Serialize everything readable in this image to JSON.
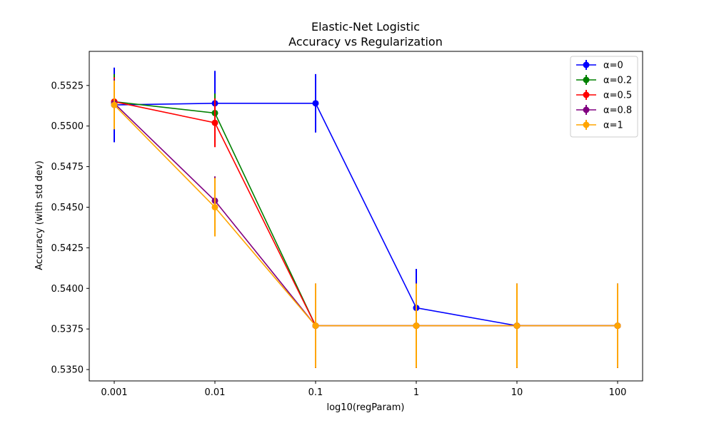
{
  "chart_data": {
    "type": "line",
    "title": "Elastic-Net Logistic",
    "subtitle": "Accuracy vs Regularization",
    "xlabel": "log10(regParam)",
    "ylabel": "Accuracy (with std dev)",
    "categories": [
      "0.001",
      "0.01",
      "0.1",
      "1",
      "10",
      "100"
    ],
    "ylim": [
      0.5343,
      0.5546
    ],
    "yticks": [
      0.535,
      0.5375,
      0.54,
      0.5425,
      0.545,
      0.5475,
      0.55,
      0.5525
    ],
    "ytick_labels": [
      "0.5350",
      "0.5375",
      "0.5400",
      "0.5425",
      "0.5450",
      "0.5475",
      "0.5500",
      "0.5525"
    ],
    "grid": false,
    "legend_position": "top-right",
    "series": [
      {
        "name": "α=0",
        "color": "#0000ff",
        "values": [
          0.5513,
          0.5514,
          0.5514,
          0.5388,
          0.5377,
          0.5377
        ],
        "errors": [
          0.0023,
          0.002,
          0.0018,
          0.0024,
          0.0026,
          0.0026
        ]
      },
      {
        "name": "α=0.2",
        "color": "#008000",
        "values": [
          0.5515,
          0.5508,
          0.5377,
          0.5377,
          0.5377,
          0.5377
        ],
        "errors": [
          0.0017,
          0.0012,
          0.0026,
          0.0026,
          0.0026,
          0.0026
        ]
      },
      {
        "name": "α=0.5",
        "color": "#ff0000",
        "values": [
          0.5515,
          0.5502,
          0.5377,
          0.5377,
          0.5377,
          0.5377
        ],
        "errors": [
          0.0015,
          0.0015,
          0.0026,
          0.0026,
          0.0026,
          0.0026
        ]
      },
      {
        "name": "α=0.8",
        "color": "#800080",
        "values": [
          0.5514,
          0.5454,
          0.5377,
          0.5377,
          0.5377,
          0.5377
        ],
        "errors": [
          0.0015,
          0.0015,
          0.0026,
          0.0026,
          0.0026,
          0.0026
        ]
      },
      {
        "name": "α=1",
        "color": "#ffa500",
        "values": [
          0.5513,
          0.545,
          0.5377,
          0.5377,
          0.5377,
          0.5377
        ],
        "errors": [
          0.0015,
          0.0018,
          0.0026,
          0.0026,
          0.0026,
          0.0026
        ]
      }
    ]
  }
}
